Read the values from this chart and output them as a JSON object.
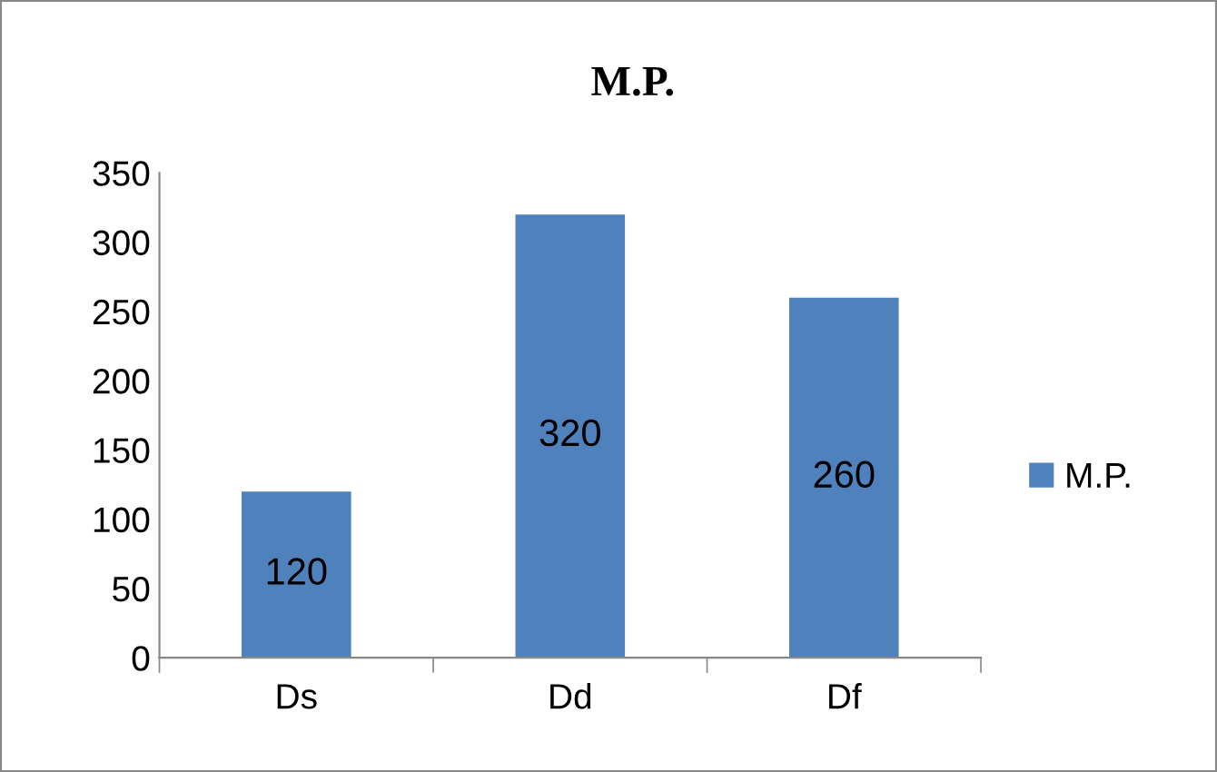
{
  "chart_data": {
    "type": "bar",
    "title": "M.P.",
    "categories": [
      "Ds",
      "Dd",
      "Df"
    ],
    "series": [
      {
        "name": "M.P.",
        "color": "#4f81bd",
        "values": [
          120,
          320,
          260
        ]
      }
    ],
    "ylim": [
      0,
      350
    ],
    "yticks": [
      0,
      50,
      100,
      150,
      200,
      250,
      300,
      350
    ],
    "data_labels": true,
    "grid": false,
    "legend": "right"
  }
}
